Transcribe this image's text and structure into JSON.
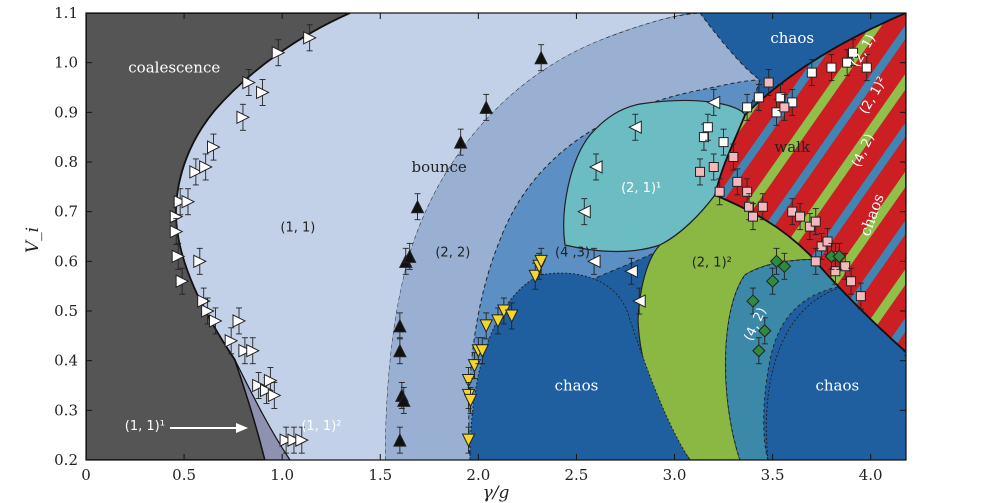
{
  "chart_data": {
    "type": "scatter",
    "title": "",
    "xlabel": "γ/g",
    "ylabel": "V_i",
    "xlim": [
      0,
      4.18
    ],
    "ylim": [
      0.2,
      1.1
    ],
    "xticks": [
      0,
      0.5,
      1.0,
      1.5,
      2.0,
      2.5,
      3.0,
      3.5,
      4.0
    ],
    "xtick_labels": [
      "0",
      "0.5",
      "1.0",
      "1.5",
      "2.0",
      "2.5",
      "3.0",
      "3.5",
      "4.0"
    ],
    "yticks": [
      0.2,
      0.3,
      0.4,
      0.5,
      0.6,
      0.7,
      0.8,
      0.9,
      1.0,
      1.1
    ],
    "ytick_labels": [
      "0.2",
      "0.3",
      "0.4",
      "0.5",
      "0.6",
      "0.7",
      "0.8",
      "0.9",
      "1.0",
      "1.1"
    ],
    "grid": false,
    "region_labels": [
      {
        "text": "coalescence",
        "x": 0.45,
        "y": 0.98,
        "color": "light"
      },
      {
        "text": "bounce",
        "x": 1.8,
        "y": 0.78,
        "color": "dark"
      },
      {
        "text": "(1, 1)",
        "x": 1.08,
        "y": 0.66,
        "color": "dark",
        "small": true
      },
      {
        "text": "(2, 2)",
        "x": 1.87,
        "y": 0.61,
        "color": "dark",
        "small": true
      },
      {
        "text": "(4 ,3)",
        "x": 2.48,
        "y": 0.61,
        "color": "dark",
        "small": true
      },
      {
        "text": "(2, 1)¹",
        "x": 2.83,
        "y": 0.74,
        "color": "light",
        "small": true
      },
      {
        "text": "(2, 1)²",
        "x": 3.19,
        "y": 0.59,
        "color": "dark",
        "small": true
      },
      {
        "text": "walk",
        "x": 3.6,
        "y": 0.82,
        "color": "dark"
      },
      {
        "text": "chaos",
        "x": 3.6,
        "y": 1.04,
        "color": "light"
      },
      {
        "text": "chaos",
        "x": 2.5,
        "y": 0.34,
        "color": "light"
      },
      {
        "text": "chaos",
        "x": 3.83,
        "y": 0.34,
        "color": "light"
      },
      {
        "text": "(1, 1)¹",
        "x": 0.3,
        "y": 0.26,
        "color": "light",
        "small": true
      },
      {
        "text": "(1, 1)²",
        "x": 1.2,
        "y": 0.26,
        "color": "light",
        "small": true
      },
      {
        "text": "(4, 2)",
        "x": 3.43,
        "y": 0.47,
        "color": "light",
        "small": true,
        "rotate": -65
      },
      {
        "text": "(2, 1)",
        "x": 3.98,
        "y": 1.02,
        "color": "light",
        "small": true,
        "rotate": -60
      },
      {
        "text": "(2, 1)²",
        "x": 4.03,
        "y": 0.93,
        "color": "light",
        "small": true,
        "rotate": -60
      },
      {
        "text": "(4, 2)",
        "x": 3.98,
        "y": 0.82,
        "color": "light",
        "small": true,
        "rotate": -65
      },
      {
        "text": "chaos",
        "x": 4.03,
        "y": 0.69,
        "color": "light",
        "rotate": -70
      }
    ],
    "series": [
      {
        "marker": "triangle-right",
        "fill": "#ffffff",
        "points": [
          [
            0.46,
            0.69
          ],
          [
            0.46,
            0.66
          ],
          [
            0.47,
            0.61
          ],
          [
            0.48,
            0.72
          ],
          [
            0.49,
            0.56
          ],
          [
            0.52,
            0.72
          ],
          [
            0.56,
            0.78
          ],
          [
            0.58,
            0.6
          ],
          [
            0.6,
            0.52
          ],
          [
            0.61,
            0.79
          ],
          [
            0.62,
            0.5
          ],
          [
            0.65,
            0.83
          ],
          [
            0.66,
            0.48
          ],
          [
            0.74,
            0.44
          ],
          [
            0.78,
            0.48
          ],
          [
            0.8,
            0.89
          ],
          [
            0.81,
            0.42
          ],
          [
            0.83,
            0.96
          ],
          [
            0.85,
            0.42
          ],
          [
            0.88,
            0.35
          ],
          [
            0.9,
            0.94
          ],
          [
            0.92,
            0.34
          ],
          [
            0.94,
            0.36
          ],
          [
            0.96,
            0.33
          ],
          [
            0.98,
            1.02
          ],
          [
            1.02,
            0.24
          ],
          [
            1.06,
            0.24
          ],
          [
            1.1,
            0.24
          ],
          [
            1.14,
            1.05
          ]
        ]
      },
      {
        "marker": "triangle-up",
        "fill": "#111111",
        "points": [
          [
            1.6,
            0.47
          ],
          [
            1.6,
            0.42
          ],
          [
            1.61,
            0.33
          ],
          [
            1.62,
            0.32
          ],
          [
            1.6,
            0.24
          ],
          [
            1.63,
            0.6
          ],
          [
            1.65,
            0.61
          ],
          [
            1.69,
            0.71
          ],
          [
            1.91,
            0.84
          ],
          [
            2.04,
            0.91
          ],
          [
            2.32,
            1.01
          ]
        ]
      },
      {
        "marker": "triangle-down",
        "fill": "#f5d62a",
        "points": [
          [
            1.95,
            0.36
          ],
          [
            1.95,
            0.33
          ],
          [
            1.96,
            0.32
          ],
          [
            1.98,
            0.39
          ],
          [
            2.0,
            0.42
          ],
          [
            2.02,
            0.42
          ],
          [
            2.04,
            0.47
          ],
          [
            2.1,
            0.48
          ],
          [
            2.13,
            0.5
          ],
          [
            2.17,
            0.49
          ],
          [
            2.29,
            0.57
          ],
          [
            2.31,
            0.59
          ],
          [
            2.32,
            0.6
          ],
          [
            1.95,
            0.24
          ]
        ]
      },
      {
        "marker": "triangle-left",
        "fill": "#ffffff",
        "points": [
          [
            2.54,
            0.7
          ],
          [
            2.6,
            0.79
          ],
          [
            2.59,
            0.6
          ],
          [
            2.78,
            0.58
          ],
          [
            2.8,
            0.87
          ],
          [
            2.82,
            0.52
          ],
          [
            3.2,
            0.92
          ]
        ]
      },
      {
        "marker": "square",
        "fill": "#ffffff",
        "points": [
          [
            3.15,
            0.85
          ],
          [
            3.17,
            0.87
          ],
          [
            3.25,
            0.84
          ],
          [
            3.37,
            0.91
          ],
          [
            3.43,
            0.93
          ],
          [
            3.52,
            0.9
          ],
          [
            3.54,
            0.93
          ],
          [
            3.6,
            0.92
          ],
          [
            3.7,
            0.98
          ],
          [
            3.8,
            0.99
          ],
          [
            3.88,
            1.0
          ],
          [
            3.91,
            1.02
          ],
          [
            3.98,
            0.99
          ]
        ]
      },
      {
        "marker": "square",
        "fill": "#f2b8bc",
        "points": [
          [
            3.13,
            0.78
          ],
          [
            3.2,
            0.79
          ],
          [
            3.23,
            0.74
          ],
          [
            3.3,
            0.81
          ],
          [
            3.32,
            0.76
          ],
          [
            3.37,
            0.74
          ],
          [
            3.38,
            0.71
          ],
          [
            3.4,
            0.69
          ],
          [
            3.45,
            0.71
          ],
          [
            3.48,
            0.96
          ],
          [
            3.56,
            0.91
          ],
          [
            3.6,
            0.7
          ],
          [
            3.64,
            0.69
          ],
          [
            3.69,
            0.67
          ],
          [
            3.72,
            0.68
          ],
          [
            3.75,
            0.63
          ],
          [
            3.78,
            0.64
          ],
          [
            3.82,
            0.61
          ],
          [
            3.87,
            0.59
          ],
          [
            3.9,
            0.56
          ],
          [
            3.95,
            0.53
          ],
          [
            3.72,
            0.6
          ],
          [
            3.82,
            0.58
          ]
        ]
      },
      {
        "marker": "diamond",
        "fill": "#2f8a3b",
        "points": [
          [
            3.4,
            0.52
          ],
          [
            3.43,
            0.42
          ],
          [
            3.46,
            0.46
          ],
          [
            3.5,
            0.56
          ],
          [
            3.52,
            0.6
          ],
          [
            3.56,
            0.59
          ],
          [
            3.8,
            0.61
          ],
          [
            3.84,
            0.61
          ]
        ]
      }
    ]
  }
}
